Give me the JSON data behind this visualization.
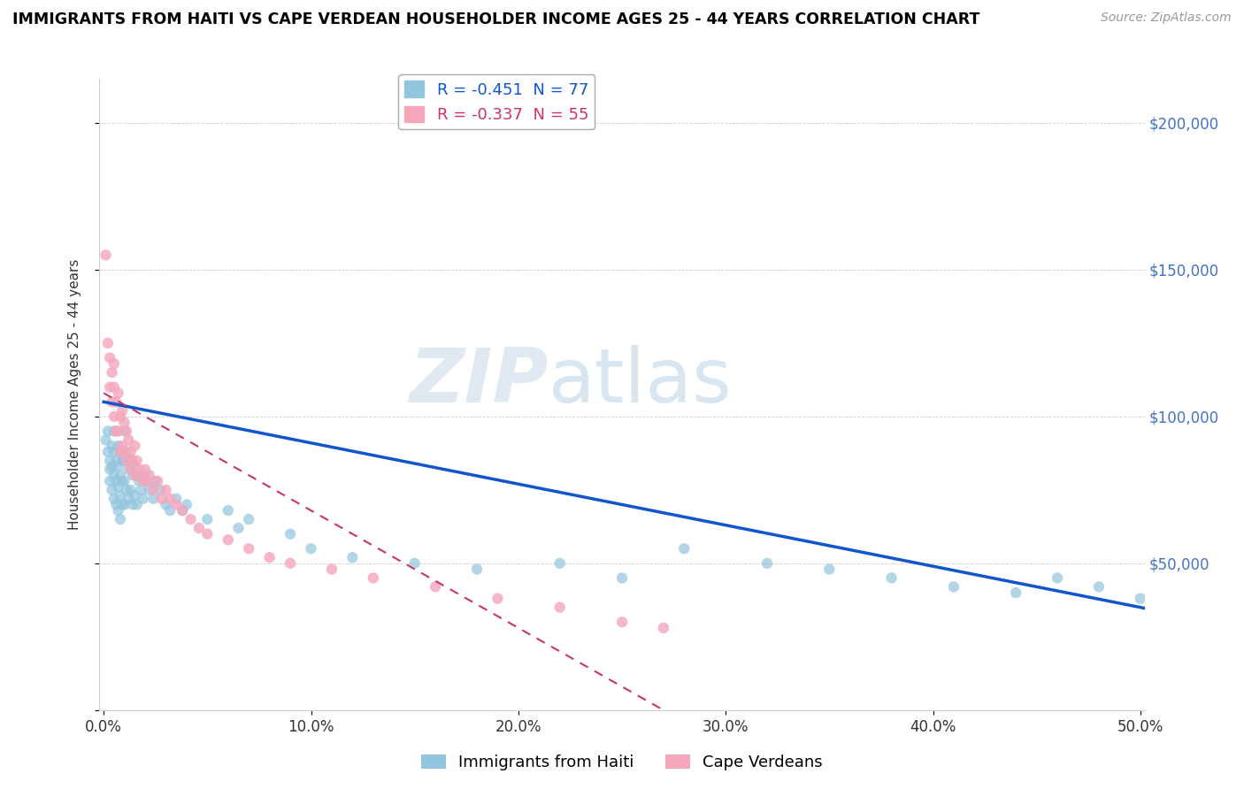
{
  "title": "IMMIGRANTS FROM HAITI VS CAPE VERDEAN HOUSEHOLDER INCOME AGES 25 - 44 YEARS CORRELATION CHART",
  "source": "Source: ZipAtlas.com",
  "ylabel": "Householder Income Ages 25 - 44 years",
  "xlim": [
    -0.002,
    0.502
  ],
  "ylim": [
    0,
    215000
  ],
  "yticks": [
    0,
    50000,
    100000,
    150000,
    200000
  ],
  "ytick_labels_right": [
    "",
    "$50,000",
    "$100,000",
    "$150,000",
    "$200,000"
  ],
  "xtick_labels": [
    "0.0%",
    "10.0%",
    "20.0%",
    "30.0%",
    "40.0%",
    "50.0%"
  ],
  "xticks": [
    0.0,
    0.1,
    0.2,
    0.3,
    0.4,
    0.5
  ],
  "haiti_color": "#92c5de",
  "cape_verde_color": "#f4a6bb",
  "haiti_line_color": "#1155cc",
  "cape_verde_line_color": "#cc3366",
  "haiti_R": -0.451,
  "haiti_N": 77,
  "cape_verde_R": -0.337,
  "cape_verde_N": 55,
  "watermark_zip": "ZIP",
  "watermark_atlas": "atlas",
  "background_color": "#ffffff",
  "haiti_line_intercept": 105000,
  "haiti_line_slope": -140000,
  "cape_verde_line_intercept": 108000,
  "cape_verde_line_slope": -400000,
  "haiti_points_x": [
    0.001,
    0.002,
    0.002,
    0.003,
    0.003,
    0.003,
    0.004,
    0.004,
    0.004,
    0.005,
    0.005,
    0.005,
    0.005,
    0.006,
    0.006,
    0.006,
    0.007,
    0.007,
    0.007,
    0.007,
    0.008,
    0.008,
    0.008,
    0.008,
    0.009,
    0.009,
    0.009,
    0.01,
    0.01,
    0.01,
    0.01,
    0.011,
    0.011,
    0.012,
    0.012,
    0.013,
    0.013,
    0.014,
    0.014,
    0.015,
    0.015,
    0.016,
    0.016,
    0.017,
    0.018,
    0.019,
    0.02,
    0.021,
    0.022,
    0.024,
    0.025,
    0.027,
    0.03,
    0.032,
    0.035,
    0.038,
    0.04,
    0.05,
    0.06,
    0.065,
    0.07,
    0.09,
    0.1,
    0.12,
    0.15,
    0.18,
    0.22,
    0.25,
    0.28,
    0.32,
    0.35,
    0.38,
    0.41,
    0.44,
    0.46,
    0.48,
    0.5
  ],
  "haiti_points_y": [
    92000,
    88000,
    95000,
    85000,
    82000,
    78000,
    90000,
    83000,
    75000,
    88000,
    80000,
    95000,
    72000,
    85000,
    78000,
    70000,
    90000,
    83000,
    76000,
    68000,
    88000,
    80000,
    73000,
    65000,
    85000,
    78000,
    70000,
    95000,
    85000,
    78000,
    70000,
    88000,
    75000,
    82000,
    72000,
    85000,
    75000,
    80000,
    70000,
    83000,
    73000,
    80000,
    70000,
    78000,
    75000,
    72000,
    80000,
    78000,
    75000,
    72000,
    78000,
    75000,
    70000,
    68000,
    72000,
    68000,
    70000,
    65000,
    68000,
    62000,
    65000,
    60000,
    55000,
    52000,
    50000,
    48000,
    50000,
    45000,
    55000,
    50000,
    48000,
    45000,
    42000,
    40000,
    45000,
    42000,
    38000
  ],
  "cape_verde_points_x": [
    0.001,
    0.002,
    0.003,
    0.003,
    0.004,
    0.004,
    0.005,
    0.005,
    0.005,
    0.006,
    0.006,
    0.007,
    0.007,
    0.008,
    0.008,
    0.009,
    0.009,
    0.01,
    0.01,
    0.011,
    0.011,
    0.012,
    0.013,
    0.013,
    0.014,
    0.015,
    0.015,
    0.016,
    0.017,
    0.018,
    0.019,
    0.02,
    0.021,
    0.022,
    0.024,
    0.026,
    0.028,
    0.03,
    0.032,
    0.035,
    0.038,
    0.042,
    0.046,
    0.05,
    0.06,
    0.07,
    0.08,
    0.09,
    0.11,
    0.13,
    0.16,
    0.19,
    0.22,
    0.25,
    0.27
  ],
  "cape_verde_points_y": [
    155000,
    125000,
    120000,
    110000,
    115000,
    105000,
    110000,
    100000,
    118000,
    105000,
    95000,
    108000,
    95000,
    100000,
    88000,
    102000,
    90000,
    98000,
    88000,
    95000,
    85000,
    92000,
    88000,
    82000,
    85000,
    90000,
    80000,
    85000,
    82000,
    80000,
    78000,
    82000,
    78000,
    80000,
    75000,
    78000,
    72000,
    75000,
    72000,
    70000,
    68000,
    65000,
    62000,
    60000,
    58000,
    55000,
    52000,
    50000,
    48000,
    45000,
    42000,
    38000,
    35000,
    30000,
    28000
  ]
}
